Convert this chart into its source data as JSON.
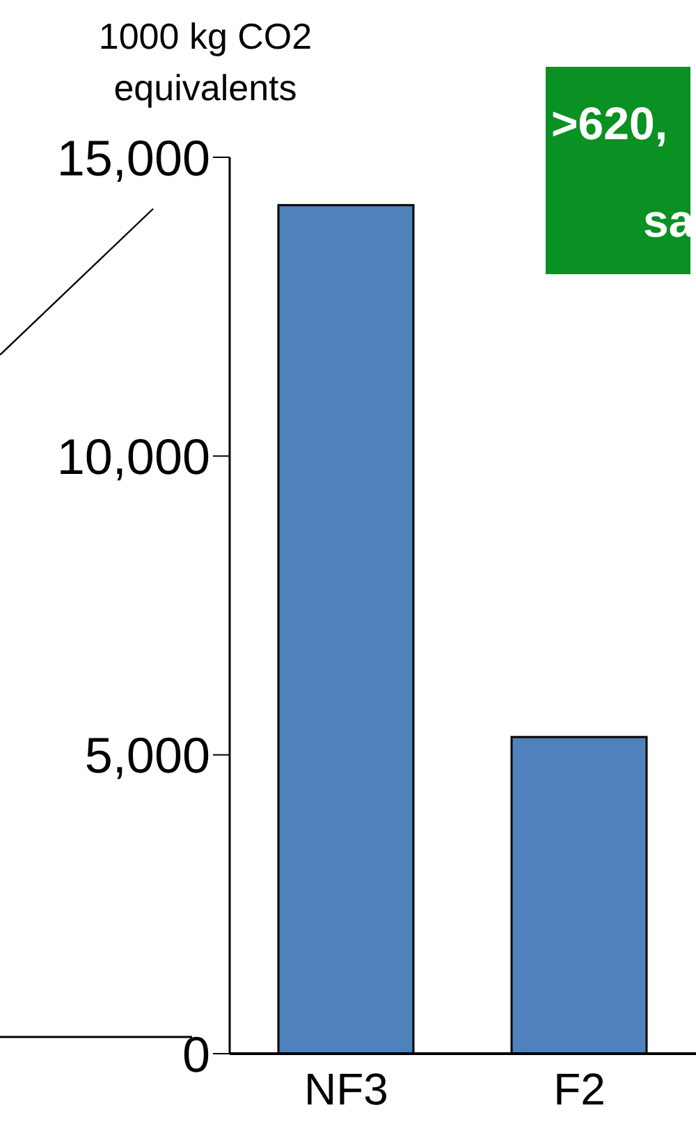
{
  "chart_data": {
    "type": "bar",
    "ylabel": "1000 kg  CO2 equivalents",
    "categories": [
      "NF3",
      "F2"
    ],
    "values": [
      14200,
      5300
    ],
    "color": "#4f81bd",
    "ylim": [
      0,
      15000
    ],
    "yticks": [
      {
        "value": 0,
        "label": "0"
      },
      {
        "value": 5000,
        "label": "5,000"
      },
      {
        "value": 10000,
        "label": "10,000"
      },
      {
        "value": 15000,
        "label": "15,000"
      }
    ],
    "annotations": [
      ">620,",
      "sa"
    ]
  }
}
